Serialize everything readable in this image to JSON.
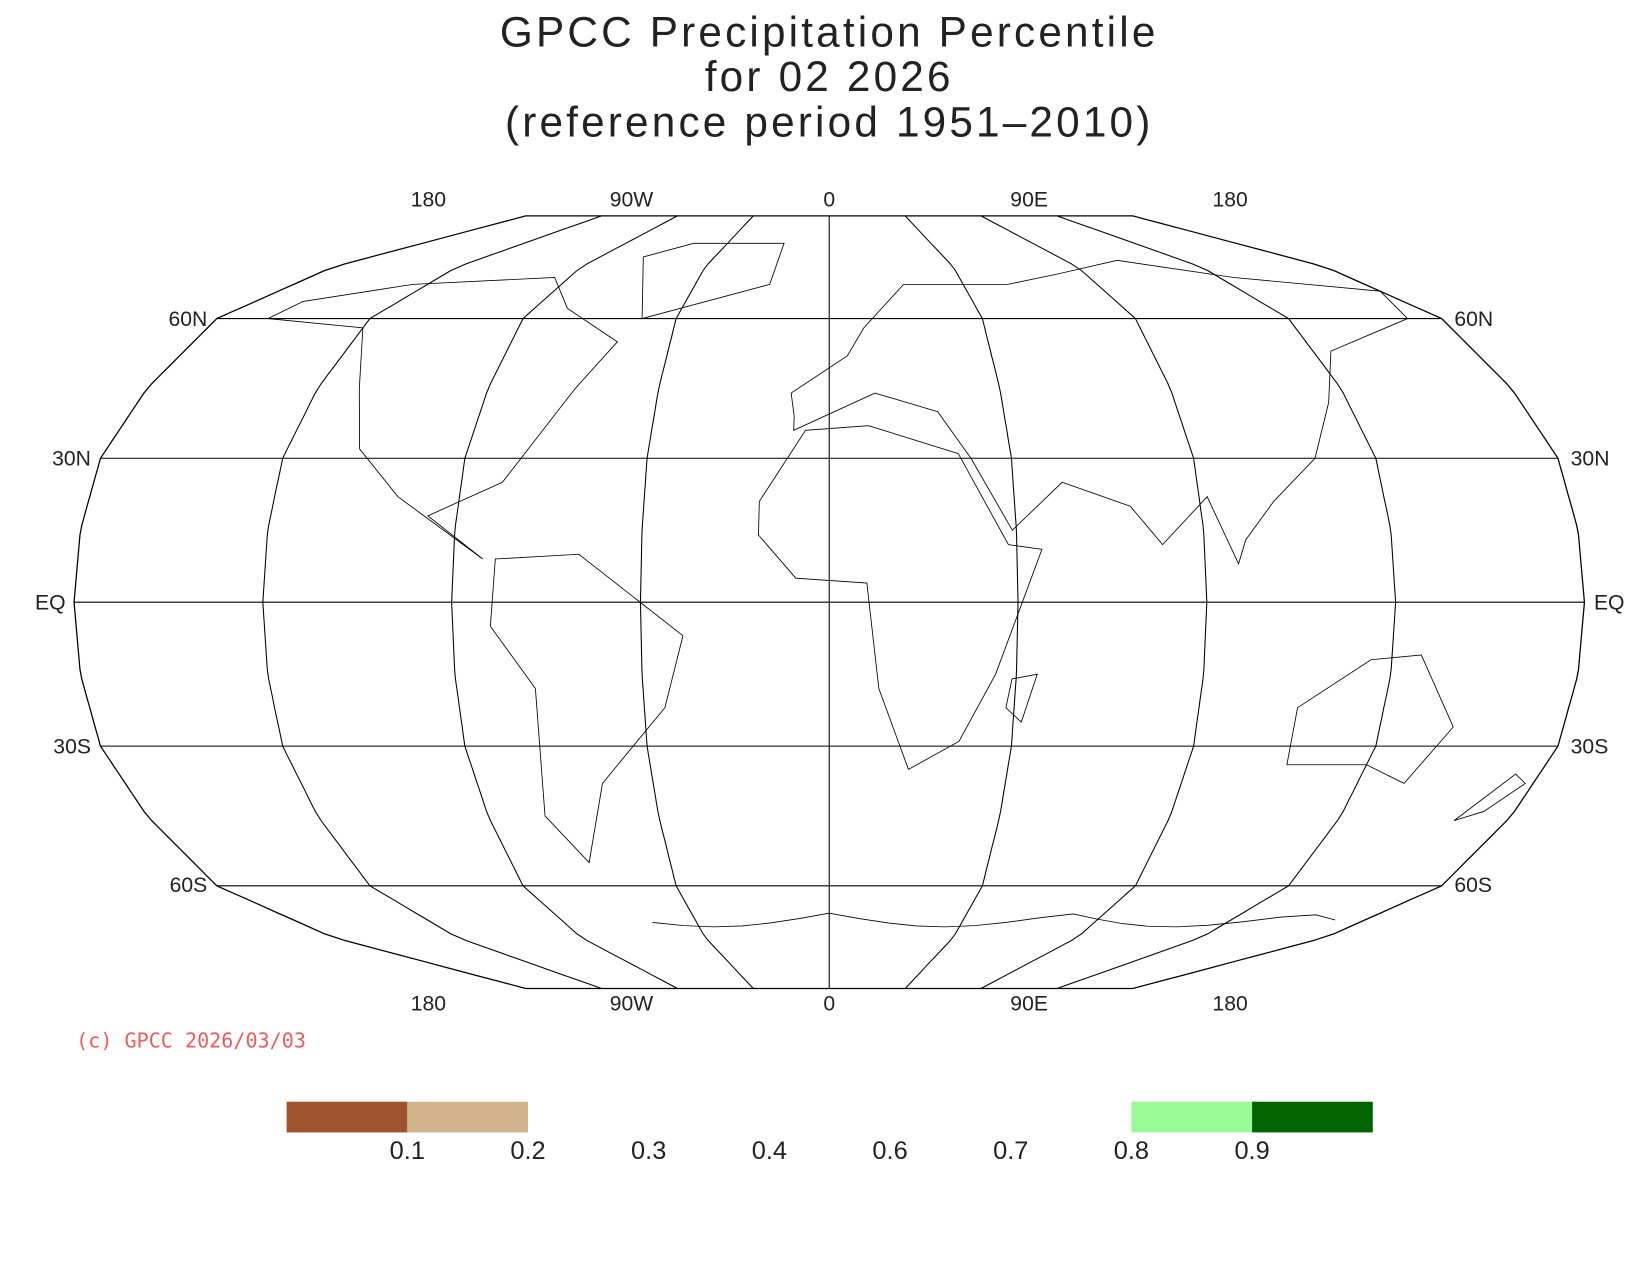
{
  "title": [
    "GPCC Precipitation Percentile",
    "for 02 2026",
    "(reference period 1951–2010)"
  ],
  "map": {
    "lon_labels": [
      "180",
      "90W",
      "0",
      "90E",
      "180"
    ],
    "lat_labels": [
      "60N",
      "30N",
      "EQ",
      "30S",
      "60S"
    ]
  },
  "credit": "(c) GPCC 2026/03/03",
  "colorbar": {
    "levels": [
      0.1,
      0.2,
      0.3,
      0.4,
      0.6,
      0.7,
      0.8,
      0.9
    ],
    "colors": [
      "#a0522d",
      "#d2b48c",
      null,
      null,
      null,
      null,
      null,
      "#98fb98",
      "#006400"
    ]
  }
}
